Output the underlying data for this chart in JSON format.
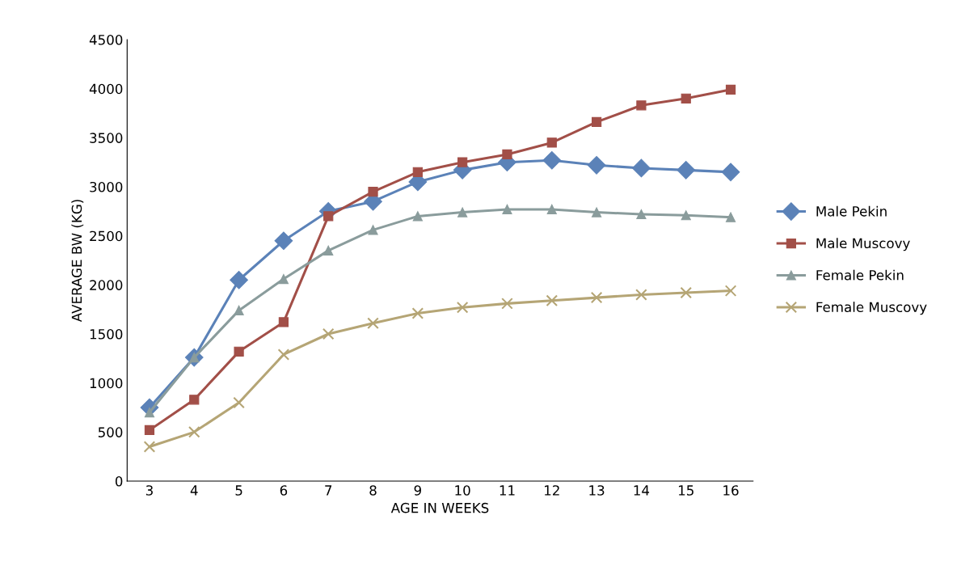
{
  "chart_data": {
    "type": "line",
    "xlabel": "AGE IN WEEKS",
    "ylabel": "AVERAGE BW (KG)",
    "categories": [
      "3",
      "4",
      "5",
      "6",
      "7",
      "8",
      "9",
      "10",
      "11",
      "12",
      "13",
      "14",
      "15",
      "16"
    ],
    "series": [
      {
        "name": "Male Pekin",
        "color": "#5b82b8",
        "marker": "diamond",
        "values": [
          750,
          1260,
          2050,
          2450,
          2750,
          2850,
          3050,
          3170,
          3250,
          3270,
          3220,
          3190,
          3170,
          3150
        ]
      },
      {
        "name": "Male Muscovy",
        "color": "#a24f48",
        "marker": "square",
        "values": [
          520,
          830,
          1320,
          1620,
          2700,
          2950,
          3150,
          3250,
          3330,
          3450,
          3660,
          3830,
          3900,
          3990
        ]
      },
      {
        "name": "Female Pekin",
        "color": "#8a9c9c",
        "marker": "triangle",
        "values": [
          700,
          1260,
          1740,
          2060,
          2350,
          2560,
          2700,
          2740,
          2770,
          2770,
          2740,
          2720,
          2710,
          2690
        ]
      },
      {
        "name": "Female Muscovy",
        "color": "#b5a575",
        "marker": "cross",
        "values": [
          350,
          500,
          800,
          1290,
          1500,
          1610,
          1710,
          1770,
          1810,
          1840,
          1870,
          1900,
          1920,
          1940
        ]
      }
    ],
    "ylim": [
      0,
      4500
    ],
    "yticks": [
      0,
      500,
      1000,
      1500,
      2000,
      2500,
      3000,
      3500,
      4000,
      4500
    ],
    "grid": false,
    "legend": "right",
    "line_style": "solid"
  }
}
